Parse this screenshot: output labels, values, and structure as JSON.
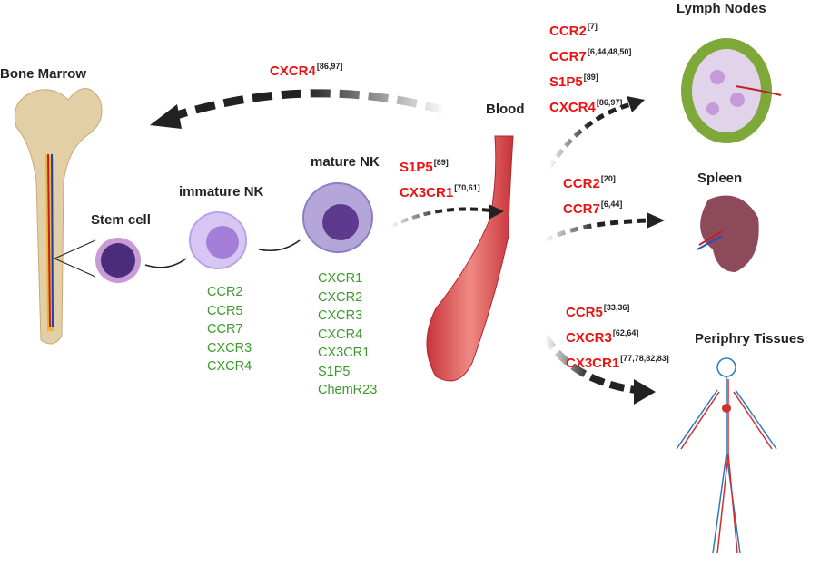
{
  "labels": {
    "bone_marrow": "Bone Marrow",
    "stem_cell": "Stem cell",
    "immature_nk": "immature NK",
    "mature_nk": "mature NK",
    "blood": "Blood",
    "lymph_nodes": "Lymph Nodes",
    "spleen": "Spleen",
    "periphery": "Periphry Tissues"
  },
  "immature_receptors": [
    "CCR2",
    "CCR5",
    "CCR7",
    "CXCR3",
    "CXCR4"
  ],
  "mature_receptors": [
    "CXCR1",
    "CXCR2",
    "CXCR3",
    "CXCR4",
    "CX3CR1",
    "S1P5",
    "ChemR23"
  ],
  "to_bone_marrow": [
    {
      "name": "CXCR4",
      "ref": "[86,97]"
    }
  ],
  "to_blood": [
    {
      "name": "S1P5",
      "ref": "[89]"
    },
    {
      "name": "CX3CR1",
      "ref": "[70,61]"
    }
  ],
  "to_lymph": [
    {
      "name": "CCR2",
      "ref": "[7]"
    },
    {
      "name": "CCR7",
      "ref": "[6,44,48,50]"
    },
    {
      "name": "S1P5",
      "ref": "[89]"
    },
    {
      "name": "CXCR4",
      "ref": "[86,97]"
    }
  ],
  "to_spleen": [
    {
      "name": "CCR2",
      "ref": "[20]"
    },
    {
      "name": "CCR7",
      "ref": "[6,44]"
    }
  ],
  "to_periphery": [
    {
      "name": "CCR5",
      "ref": "[33,36]"
    },
    {
      "name": "CXCR3",
      "ref": "[62,64]"
    },
    {
      "name": "CX3CR1",
      "ref": "[77,78,82,83]"
    }
  ],
  "colors": {
    "receptor_red": "#ee1111",
    "receptor_green": "#3a9a2a",
    "arrow": "#222222"
  }
}
